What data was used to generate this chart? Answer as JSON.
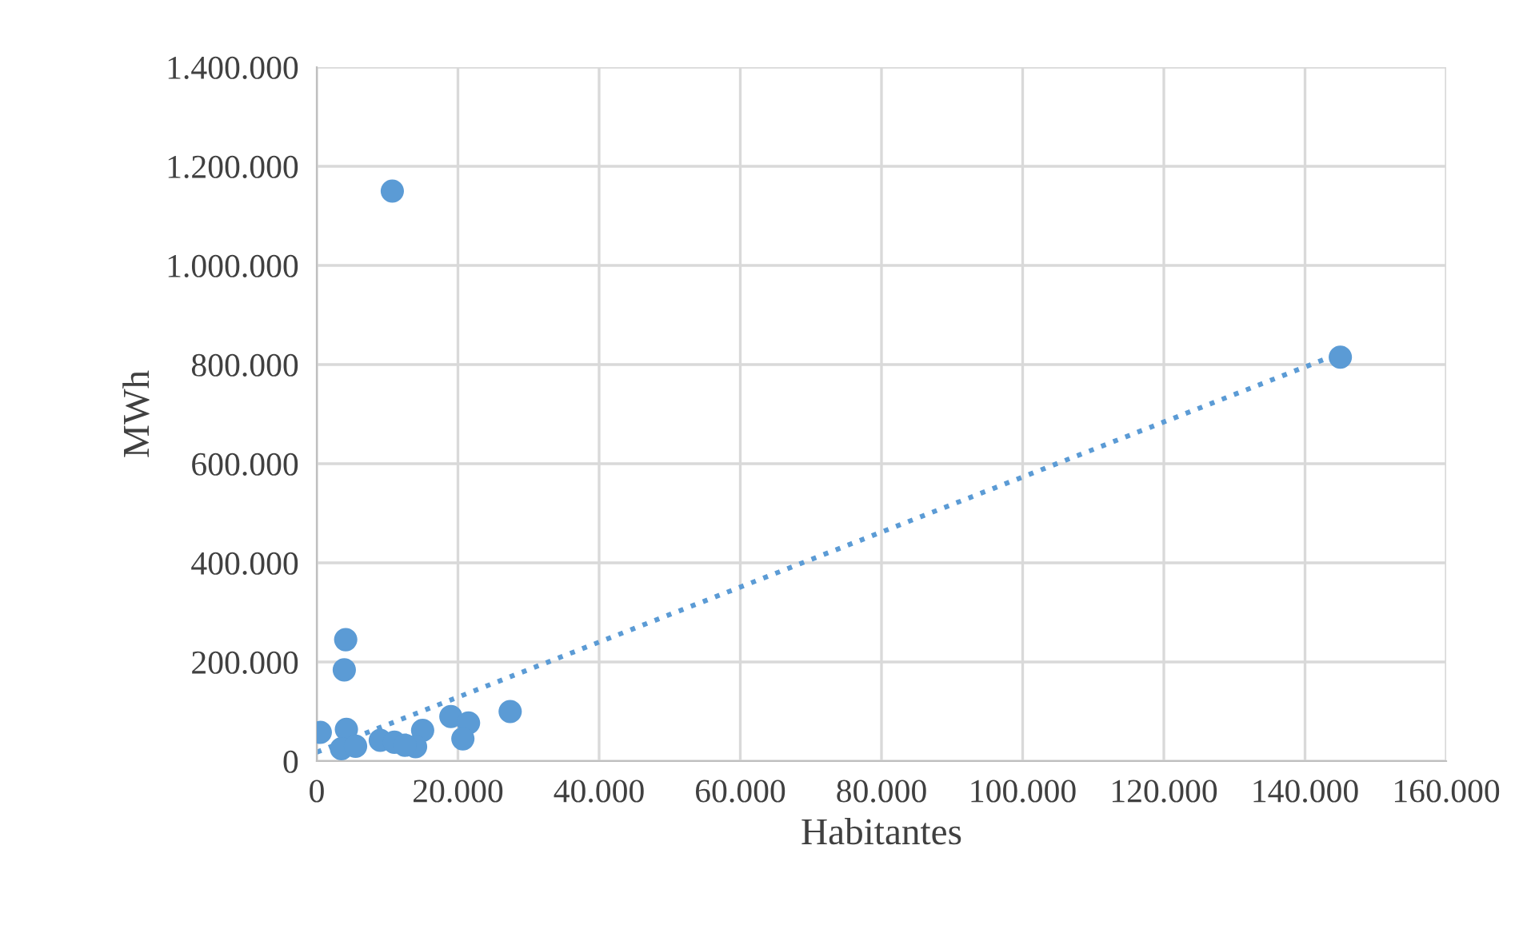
{
  "chart_data": {
    "type": "scatter",
    "xlabel": "Habitantes",
    "ylabel": "MWh",
    "xlim": [
      0,
      160000
    ],
    "ylim": [
      0,
      1400000
    ],
    "xticks": [
      0,
      {
        "value": 20000,
        "label": "20.000"
      },
      {
        "value": 40000,
        "label": "40.000"
      },
      {
        "value": 60000,
        "label": "60.000"
      },
      {
        "value": 80000,
        "label": "80.000"
      },
      {
        "value": 100000,
        "label": "100.000"
      },
      {
        "value": 120000,
        "label": "120.000"
      },
      {
        "value": 140000,
        "label": "140.000"
      },
      {
        "value": 160000,
        "label": "160.000"
      }
    ],
    "yticks": [
      0,
      {
        "value": 200000,
        "label": "200.000"
      },
      {
        "value": 400000,
        "label": "400.000"
      },
      {
        "value": 600000,
        "label": "600.000"
      },
      {
        "value": 800000,
        "label": "800.000"
      },
      {
        "value": 1000000,
        "label": "1.000.000"
      },
      {
        "value": 1200000,
        "label": "1.200.000"
      },
      {
        "value": 1400000,
        "label": "1.400.000"
      }
    ],
    "grid": true,
    "legend": false,
    "series": [
      {
        "color": "#5b9bd5",
        "marker": "circle",
        "x": [
          10700,
          145000,
          4100,
          3900,
          500,
          4200,
          15000,
          19000,
          21500,
          20700,
          27400,
          9000,
          11000,
          14000,
          3500,
          5500,
          12500
        ],
        "values": [
          1150000,
          815000,
          245000,
          184000,
          58000,
          64000,
          62000,
          90000,
          77000,
          45000,
          100000,
          42000,
          38000,
          29000,
          25000,
          30000,
          32000
        ]
      },
      {
        "type": "line",
        "color": "#5b9bd5",
        "line_style": "dotted",
        "marker": "none",
        "x": [
          0,
          145000
        ],
        "values": [
          18000,
          823000
        ]
      }
    ]
  }
}
